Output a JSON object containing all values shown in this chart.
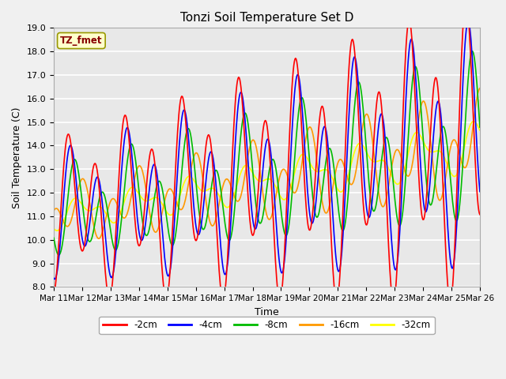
{
  "title": "Tonzi Soil Temperature Set D",
  "xlabel": "Time",
  "ylabel": "Soil Temperature (C)",
  "ylim": [
    8.0,
    19.0
  ],
  "yticks": [
    8.0,
    9.0,
    10.0,
    11.0,
    12.0,
    13.0,
    14.0,
    15.0,
    16.0,
    17.0,
    18.0,
    19.0
  ],
  "series_colors": {
    "-2cm": "#ff0000",
    "-4cm": "#0000ff",
    "-8cm": "#00bb00",
    "-16cm": "#ff9900",
    "-32cm": "#ffff00"
  },
  "annotation_text": "TZ_fmet",
  "annotation_color": "#880000",
  "annotation_bg": "#ffffcc",
  "annotation_edge": "#999900",
  "days": [
    "Mar 11",
    "Mar 12",
    "Mar 13",
    "Mar 14",
    "Mar 15",
    "Mar 16",
    "Mar 17",
    "Mar 18",
    "Mar 19",
    "Mar 20",
    "Mar 21",
    "Mar 22",
    "Mar 23",
    "Mar 24",
    "Mar 25",
    "Mar 26"
  ],
  "figsize": [
    6.4,
    4.8
  ],
  "dpi": 100
}
